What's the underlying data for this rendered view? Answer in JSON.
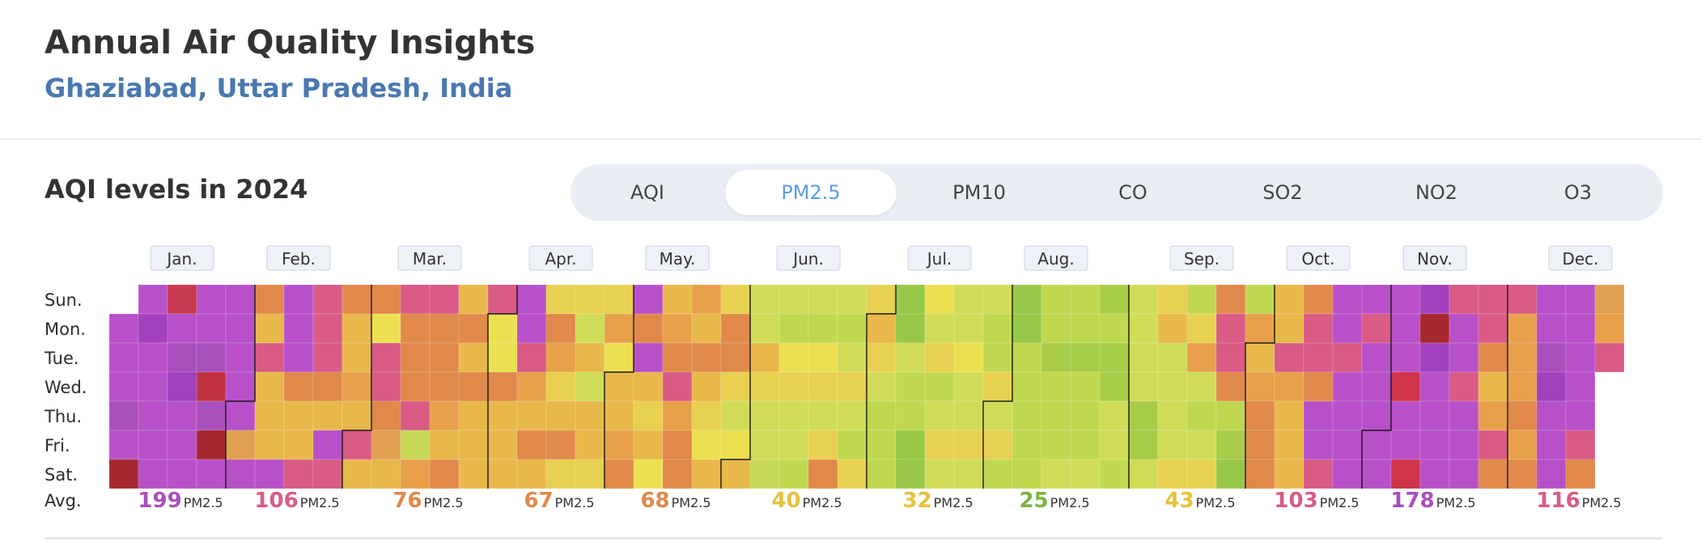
{
  "header": {
    "title": "Annual Air Quality Insights",
    "location": "Ghaziabad, Uttar Pradesh, India"
  },
  "section": {
    "title": "AQI levels in 2024"
  },
  "tabs": [
    {
      "label": "AQI",
      "active": false
    },
    {
      "label": "PM2.5",
      "active": true
    },
    {
      "label": "PM10",
      "active": false
    },
    {
      "label": "CO",
      "active": false
    },
    {
      "label": "SO2",
      "active": false
    },
    {
      "label": "NO2",
      "active": false
    },
    {
      "label": "O3",
      "active": false
    }
  ],
  "chart_data": {
    "type": "heatmap",
    "year": 2024,
    "pollutant": "PM2.5",
    "day_labels": [
      "Sun.",
      "Mon.",
      "Tue.",
      "Wed.",
      "Thu.",
      "Fri.",
      "Sat."
    ],
    "avg_label": "Avg.",
    "unit": "PM2.5",
    "months": [
      {
        "label": "Jan.",
        "avg": 199,
        "color": "#a94fbd"
      },
      {
        "label": "Feb.",
        "avg": 106,
        "color": "#d95b86"
      },
      {
        "label": "Mar.",
        "avg": 76,
        "color": "#e0894a"
      },
      {
        "label": "Apr.",
        "avg": 67,
        "color": "#e0894a"
      },
      {
        "label": "May.",
        "avg": 68,
        "color": "#e0894a"
      },
      {
        "label": "Jun.",
        "avg": 40,
        "color": "#e6c23c"
      },
      {
        "label": "Jul.",
        "avg": 32,
        "color": "#e6c23c"
      },
      {
        "label": "Aug.",
        "avg": 25,
        "color": "#7cb342"
      },
      {
        "label": "Sep.",
        "avg": 43,
        "color": "#e6c23c"
      },
      {
        "label": "Oct.",
        "avg": 103,
        "color": "#d95b86"
      },
      {
        "label": "Nov.",
        "avg": 178,
        "color": "#a94fbd"
      },
      {
        "label": "Dec.",
        "avg": 116,
        "color": "#d95b86"
      }
    ],
    "weeks": [
      [
        null,
        "#b851c9",
        "#b851c9",
        "#b851c9",
        "#a94fbd",
        "#b851c9",
        "#a8282f"
      ],
      [
        "#b851c9",
        "#a240bd",
        "#b851c9",
        "#b851c9",
        "#b851c9",
        "#b851c9",
        "#b851c9"
      ],
      [
        "#c83a4f",
        "#b851c9",
        "#a94fbd",
        "#a240bd",
        "#b851c9",
        "#b851c9",
        "#b851c9"
      ],
      [
        "#b851c9",
        "#b851c9",
        "#a94fbd",
        "#c0323f",
        "#a94fbd",
        "#a8282f",
        "#b851c9"
      ],
      [
        "#b851c9",
        "#b851c9",
        "#b851c9",
        "#b851c9",
        "#b851c9",
        "#e0a050",
        "#b851c9"
      ],
      [
        "#e0894a",
        "#e8b84a",
        "#d95b86",
        "#e8b84a",
        "#e8b84a",
        "#e8b84a",
        "#b851c9"
      ],
      [
        "#b851c9",
        "#b851c9",
        "#b851c9",
        "#e0894a",
        "#e8b84a",
        "#e8b84a",
        "#d95b86"
      ],
      [
        "#d95b86",
        "#d95b86",
        "#d95b86",
        "#e0894a",
        "#e8b84a",
        "#b851c9",
        "#d95b86"
      ],
      [
        "#e0894a",
        "#e8b84a",
        "#e8b84a",
        "#e8a04a",
        "#e8b84a",
        "#d95b86",
        "#e8b84a"
      ],
      [
        "#e0894a",
        "#ece050",
        "#d95b86",
        "#d95b86",
        "#e0894a",
        "#e0a050",
        "#e8b84a"
      ],
      [
        "#d95b86",
        "#e0894a",
        "#e0894a",
        "#e0894a",
        "#d95b86",
        "#c8d858",
        "#e8a04a"
      ],
      [
        "#d95b86",
        "#e0894a",
        "#e0894a",
        "#e0894a",
        "#e8a04a",
        "#e8b84a",
        "#e0894a"
      ],
      [
        "#e8b84a",
        "#e0894a",
        "#e8b84a",
        "#e0894a",
        "#e8b84a",
        "#e8b84a",
        "#e8b84a"
      ],
      [
        "#d95b86",
        "#ece050",
        "#ece050",
        "#e0894a",
        "#e8b84a",
        "#e8b84a",
        "#e8b84a"
      ],
      [
        "#b851c9",
        "#b851c9",
        "#d95b86",
        "#e8a04a",
        "#e8b84a",
        "#e0894a",
        "#e8b84a"
      ],
      [
        "#e8d050",
        "#e0894a",
        "#e8a04a",
        "#e8d050",
        "#e8b84a",
        "#e0894a",
        "#e8d050"
      ],
      [
        "#e8d050",
        "#d0dc58",
        "#e8b84a",
        "#d0dc58",
        "#e8b84a",
        "#e8b84a",
        "#e8d050"
      ],
      [
        "#e8d050",
        "#e8a04a",
        "#ece050",
        "#e8b84a",
        "#e8b84a",
        "#e8a04a",
        "#e0894a"
      ],
      [
        "#b851c9",
        "#e0894a",
        "#b851c9",
        "#e8b84a",
        "#e8d050",
        "#e8b84a",
        "#ece050"
      ],
      [
        "#e8b84a",
        "#e8a04a",
        "#e0894a",
        "#d95b86",
        "#e8a04a",
        "#e0894a",
        "#e0894a"
      ],
      [
        "#e8a04a",
        "#e8b84a",
        "#e0894a",
        "#e8b84a",
        "#e8d050",
        "#ece050",
        "#e8b84a"
      ],
      [
        "#e8d050",
        "#e0894a",
        "#e0894a",
        "#e8d050",
        "#d0dc58",
        "#ece050",
        "#e8b84a"
      ],
      [
        "#d0dc58",
        "#d0dc58",
        "#e8b84a",
        "#e8d050",
        "#d0dc58",
        "#d0dc58",
        "#c8d858"
      ],
      [
        "#d0dc58",
        "#c0d850",
        "#ece050",
        "#e8d050",
        "#d0dc58",
        "#d0dc58",
        "#c0d850"
      ],
      [
        "#d0dc58",
        "#c0d850",
        "#ece050",
        "#e8d050",
        "#d0dc58",
        "#e8d050",
        "#e0894a"
      ],
      [
        "#d0dc58",
        "#c0d850",
        "#d0dc58",
        "#e8d050",
        "#d0dc58",
        "#c0d850",
        "#e8d050"
      ],
      [
        "#e8d050",
        "#e8b84a",
        "#e8d050",
        "#d0dc58",
        "#c0d850",
        "#c0d850",
        "#c0d850"
      ],
      [
        "#98c848",
        "#98c848",
        "#d0dc58",
        "#c0d850",
        "#c0d850",
        "#98c848",
        "#98c848"
      ],
      [
        "#ece050",
        "#d0dc58",
        "#e8d050",
        "#c0d850",
        "#d0dc58",
        "#e8d050",
        "#d0dc58"
      ],
      [
        "#d0dc58",
        "#d0dc58",
        "#ece050",
        "#d0dc58",
        "#d0dc58",
        "#e8d050",
        "#d0dc58"
      ],
      [
        "#d0dc58",
        "#c0d850",
        "#c0d850",
        "#e8d050",
        "#d0dc58",
        "#e8d050",
        "#c0d850"
      ],
      [
        "#98c848",
        "#98c848",
        "#c0d850",
        "#c0d850",
        "#c0d850",
        "#c0d850",
        "#c0d850"
      ],
      [
        "#c0d850",
        "#c0d850",
        "#a8cc48",
        "#c0d850",
        "#c0d850",
        "#c0d850",
        "#d0dc58"
      ],
      [
        "#c0d850",
        "#c0d850",
        "#a8cc48",
        "#c0d850",
        "#c0d850",
        "#c0d850",
        "#d0dc58"
      ],
      [
        "#a8cc48",
        "#c0d850",
        "#a8cc48",
        "#a8cc48",
        "#d0dc58",
        "#d0dc58",
        "#c0d850"
      ],
      [
        "#d0dc58",
        "#d0dc58",
        "#d0dc58",
        "#d0dc58",
        "#a8cc48",
        "#a8cc48",
        "#d0dc58"
      ],
      [
        "#e8d050",
        "#e8b84a",
        "#d0dc58",
        "#d0dc58",
        "#d0dc58",
        "#d0dc58",
        "#e8d050"
      ],
      [
        "#c0d850",
        "#e8d050",
        "#e8a04a",
        "#d0dc58",
        "#c0d850",
        "#d0dc58",
        "#e8d050"
      ],
      [
        "#e0894a",
        "#d95b86",
        "#d95b86",
        "#e0894a",
        "#c0d850",
        "#a8cc48",
        "#98c848"
      ],
      [
        "#c0d850",
        "#e8a04a",
        "#e8b84a",
        "#e8a04a",
        "#e0894a",
        "#e0894a",
        "#e0894a"
      ],
      [
        "#e8b84a",
        "#e8b84a",
        "#d95b86",
        "#e8a04a",
        "#e8b84a",
        "#e8b84a",
        "#e8b84a"
      ],
      [
        "#e0894a",
        "#d95b86",
        "#d95b86",
        "#e0894a",
        "#b851c9",
        "#b851c9",
        "#d95b86"
      ],
      [
        "#b851c9",
        "#b851c9",
        "#d95b86",
        "#b851c9",
        "#b851c9",
        "#b851c9",
        "#b851c9"
      ],
      [
        "#b851c9",
        "#d95b86",
        "#b851c9",
        "#b851c9",
        "#b851c9",
        "#b851c9",
        "#b851c9"
      ],
      [
        "#b851c9",
        "#b851c9",
        "#b851c9",
        "#d0344a",
        "#b851c9",
        "#b851c9",
        "#d0344a"
      ],
      [
        "#a240bd",
        "#a8282f",
        "#a240bd",
        "#b851c9",
        "#b851c9",
        "#b851c9",
        "#b851c9"
      ],
      [
        "#d95b86",
        "#b851c9",
        "#b851c9",
        "#d95b86",
        "#b851c9",
        "#b851c9",
        "#b851c9"
      ],
      [
        "#d95b86",
        "#d95b86",
        "#e0894a",
        "#e8b84a",
        "#e8a04a",
        "#d95b86",
        "#e0894a"
      ],
      [
        "#d95b86",
        "#e8a04a",
        "#e8a04a",
        "#e8a04a",
        "#e0894a",
        "#e8a04a",
        "#e0894a"
      ],
      [
        "#b851c9",
        "#b851c9",
        "#a94fbd",
        "#a240bd",
        "#b851c9",
        "#b851c9",
        "#b851c9"
      ],
      [
        "#b851c9",
        "#b851c9",
        "#b851c9",
        "#b851c9",
        "#b851c9",
        "#d95b86",
        "#e0894a"
      ],
      [
        "#e0a050",
        "#e8a04a",
        "#d95b86",
        null,
        null,
        null,
        null
      ]
    ]
  }
}
